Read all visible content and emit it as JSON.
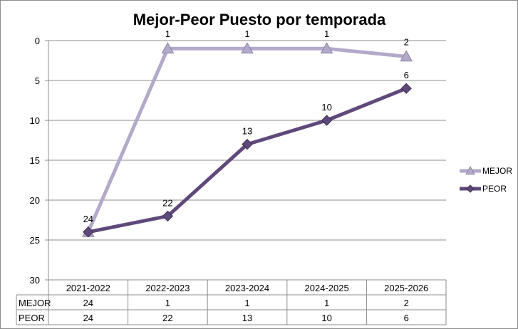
{
  "chart_data": {
    "type": "line",
    "title": "Mejor-Peor Puesto por temporada",
    "categories": [
      "2021-2022",
      "2022-2023",
      "2023-2024",
      "2024-2025",
      "2025-2026"
    ],
    "y_axis": {
      "inverted": true,
      "ylim": [
        0,
        30
      ],
      "ticks": [
        "0",
        "5",
        "10",
        "15",
        "20",
        "25",
        "30"
      ]
    },
    "grid": true,
    "legend_position": "right",
    "series": [
      {
        "name": "MEJOR",
        "values": [
          24,
          1,
          1,
          1,
          2
        ],
        "color": "#B3A9C9",
        "marker": "triangle"
      },
      {
        "name": "PEOR",
        "values": [
          24,
          22,
          13,
          10,
          6
        ],
        "color": "#60497A",
        "marker": "diamond"
      }
    ],
    "data_table": {
      "rows": [
        {
          "label": "MEJOR",
          "values": [
            "24",
            "1",
            "1",
            "1",
            "2"
          ]
        },
        {
          "label": "PEOR",
          "values": [
            "24",
            "22",
            "13",
            "10",
            "6"
          ]
        }
      ]
    }
  }
}
